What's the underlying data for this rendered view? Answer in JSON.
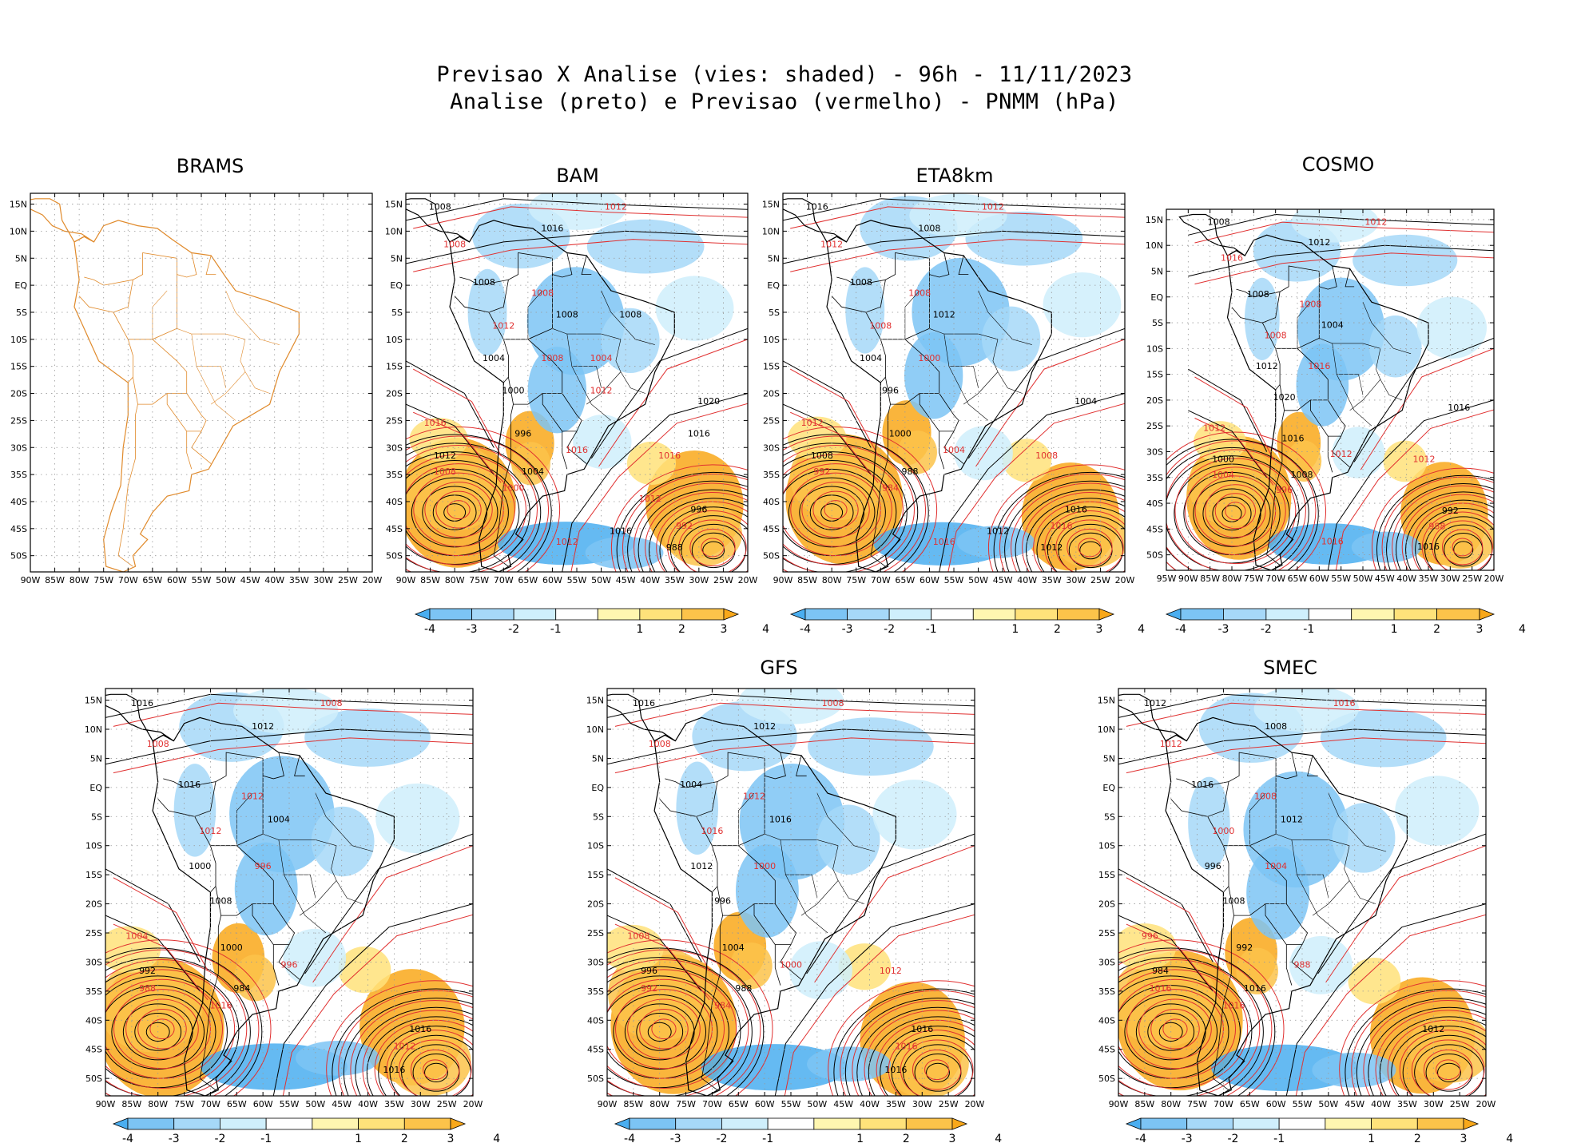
{
  "title": {
    "line1": "Previsao X Analise (vies: shaded) - 96h - 11/11/2023",
    "line2": "Analise (preto) e Previsao (vermelho) - PNMM (hPa)"
  },
  "lat_labels": [
    "15N",
    "10N",
    "5N",
    "EQ",
    "5S",
    "10S",
    "15S",
    "20S",
    "25S",
    "30S",
    "35S",
    "40S",
    "45S",
    "50S"
  ],
  "lon_labels_90": [
    "90W",
    "85W",
    "80W",
    "75W",
    "70W",
    "65W",
    "60W",
    "55W",
    "50W",
    "45W",
    "40W",
    "35W",
    "30W",
    "25W",
    "20W"
  ],
  "lon_labels_95": [
    "95W",
    "90W",
    "85W",
    "80W",
    "75W",
    "70W",
    "65W",
    "60W",
    "55W",
    "50W",
    "45W",
    "40W",
    "35W",
    "30W",
    "25W",
    "20W"
  ],
  "colorbar": {
    "labels": [
      "-4",
      "-3",
      "-2",
      "-1",
      "1",
      "2",
      "3",
      "4"
    ],
    "colors": [
      "#4aaef0",
      "#7cc4f4",
      "#a6d8f8",
      "#cfeffc",
      "#ffffff",
      "#fff6b0",
      "#ffe27a",
      "#fcc34a",
      "#f9a81a"
    ]
  },
  "colors": {
    "land_outline": "#e08a2b",
    "analysis_contour": "#000000",
    "forecast_contour": "#e03030"
  },
  "panels": [
    {
      "id": "brams",
      "title": "BRAMS",
      "has_colorbar": false,
      "has_field": false
    },
    {
      "id": "bam",
      "title": "BAM",
      "has_colorbar": true,
      "has_field": true,
      "labels": [
        "1008",
        "1012",
        "1016",
        "1008",
        "1008",
        "1008",
        "1008",
        "1012",
        "1004",
        "1008",
        "1000",
        "1016",
        "996",
        "1016",
        "1012",
        "1008",
        "1004",
        "1000",
        "996",
        "992",
        "988",
        "1016",
        "1020",
        "1012",
        "1016",
        "1012",
        "1016",
        "1012",
        "1008",
        "1004"
      ]
    },
    {
      "id": "eta8km",
      "title": "ETA8km",
      "has_colorbar": true,
      "has_field": true,
      "labels": [
        "1016",
        "1012",
        "1008",
        "1012",
        "1008",
        "1008",
        "1012",
        "1008",
        "1004",
        "1000",
        "996",
        "1012",
        "1000",
        "1004",
        "1008",
        "992",
        "988",
        "984",
        "1016",
        "1016",
        "1012",
        "1008",
        "1004",
        "1016",
        "1012"
      ]
    },
    {
      "id": "cosmo",
      "title": "COSMO",
      "has_colorbar": true,
      "has_field": true,
      "labels": [
        "1008",
        "1012",
        "1012",
        "1016",
        "1008",
        "1008",
        "1004",
        "1008",
        "1012",
        "1016",
        "1020",
        "1012",
        "1016",
        "1012",
        "1000",
        "1004",
        "1008",
        "996",
        "992",
        "988",
        "1016",
        "1012",
        "1016",
        "1016"
      ]
    },
    {
      "id": "unnamed",
      "title": "",
      "has_colorbar": true,
      "has_field": true,
      "labels": [
        "1016",
        "1008",
        "1012",
        "1008",
        "1016",
        "1012",
        "1004",
        "1012",
        "1000",
        "996",
        "1008",
        "1004",
        "1000",
        "996",
        "992",
        "988",
        "984",
        "1016",
        "1016",
        "1012",
        "1016"
      ]
    },
    {
      "id": "gfs",
      "title": "GFS",
      "has_colorbar": true,
      "has_field": true,
      "labels": [
        "1016",
        "1008",
        "1012",
        "1008",
        "1004",
        "1012",
        "1016",
        "1016",
        "1012",
        "1000",
        "996",
        "1008",
        "1004",
        "1000",
        "996",
        "992",
        "988",
        "984",
        "1016",
        "1016",
        "1016",
        "1012"
      ]
    },
    {
      "id": "smec",
      "title": "SMEC",
      "has_colorbar": true,
      "has_field": true,
      "labels": [
        "1012",
        "1016",
        "1008",
        "1012",
        "1016",
        "1008",
        "1012",
        "1000",
        "996",
        "1004",
        "1008",
        "996",
        "992",
        "988",
        "984",
        "1016",
        "1016",
        "1016",
        "1012"
      ]
    }
  ]
}
